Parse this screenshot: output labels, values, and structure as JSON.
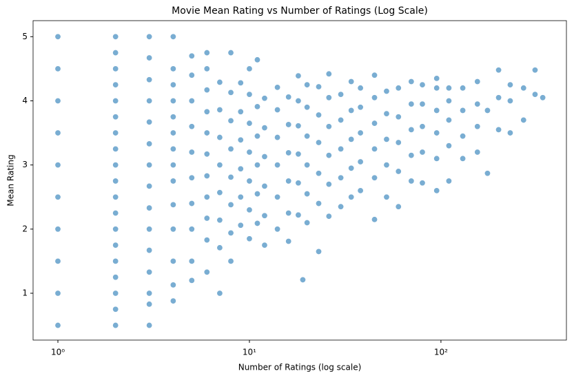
{
  "chart_data": {
    "type": "scatter",
    "title": "Movie Mean Rating vs Number of Ratings (Log Scale)",
    "x_label": "Number of Ratings (log scale)",
    "y_label": "Mean Rating",
    "color": "#1f77b4",
    "x_log": true,
    "grid": false,
    "xlim": [
      0.742,
      452
    ],
    "ylim": [
      0.27,
      5.25
    ],
    "xticks": [
      {
        "value": 1,
        "label": "10⁰"
      },
      {
        "value": 10,
        "label": "10¹"
      },
      {
        "value": 100,
        "label": "10²"
      }
    ],
    "yticks": [
      1,
      2,
      3,
      4,
      5
    ],
    "x": [
      1,
      1,
      1,
      1,
      1,
      1,
      1,
      1,
      1,
      1,
      2,
      2,
      2,
      2,
      2,
      2,
      2,
      2,
      2,
      2,
      2,
      2,
      2,
      2,
      2,
      2,
      2,
      2,
      2,
      3,
      3,
      3,
      3,
      3,
      3,
      3,
      3,
      3,
      3,
      3,
      3,
      3,
      3,
      3,
      4,
      4,
      4,
      4,
      4,
      4,
      4,
      4,
      4,
      4,
      4,
      4,
      4,
      4,
      5,
      5,
      5,
      5,
      5,
      5,
      5,
      5,
      5,
      5,
      6,
      6,
      6,
      6,
      6,
      6,
      6,
      6,
      6,
      6,
      6,
      7,
      7,
      7,
      7,
      7,
      7,
      7,
      7,
      8,
      8,
      8,
      8,
      8,
      8,
      8,
      8,
      9,
      9,
      9,
      9,
      9,
      9,
      10,
      10,
      10,
      10,
      10,
      10,
      10,
      11,
      11,
      11,
      11,
      11,
      11,
      12,
      12,
      12,
      12,
      12,
      12,
      14,
      14,
      14,
      14,
      14,
      14,
      16,
      16,
      16,
      16,
      16,
      16,
      18,
      18,
      18,
      18,
      18,
      18,
      19,
      20,
      20,
      20,
      20,
      20,
      20,
      23,
      23,
      23,
      23,
      23,
      23,
      26,
      26,
      26,
      26,
      26,
      26,
      30,
      30,
      30,
      30,
      30,
      34,
      34,
      34,
      34,
      34,
      38,
      38,
      38,
      38,
      38,
      45,
      45,
      45,
      45,
      45,
      45,
      52,
      52,
      52,
      52,
      52,
      60,
      60,
      60,
      60,
      60,
      70,
      70,
      70,
      70,
      70,
      80,
      80,
      80,
      80,
      80,
      95,
      95,
      95,
      95,
      95,
      95,
      110,
      110,
      110,
      110,
      110,
      130,
      130,
      130,
      130,
      155,
      155,
      155,
      155,
      175,
      175,
      200,
      200,
      200,
      230,
      230,
      230,
      270,
      270,
      310,
      310,
      340
    ],
    "values": [
      0.5,
      1,
      1.5,
      2,
      2.5,
      3,
      3.5,
      4,
      4.5,
      5,
      0.5,
      0.75,
      1,
      1.25,
      1.5,
      1.75,
      2,
      2.25,
      2.5,
      2.75,
      3,
      3.25,
      3.5,
      3.75,
      4,
      4.25,
      4.5,
      4.75,
      5,
      0.5,
      0.83,
      1,
      1.33,
      1.67,
      2,
      2.33,
      2.67,
      3,
      3.33,
      3.67,
      4,
      4.33,
      4.67,
      5,
      0.88,
      1.13,
      1.5,
      2,
      2.38,
      2.75,
      3,
      3.25,
      3.5,
      3.75,
      4,
      4.25,
      4.5,
      5,
      1.2,
      1.5,
      2,
      2.4,
      2.8,
      3.2,
      3.6,
      4,
      4.4,
      4.7,
      1.33,
      1.83,
      2.17,
      2.5,
      2.83,
      3.17,
      3.5,
      3.83,
      4.17,
      4.5,
      4.75,
      1,
      1.71,
      2.14,
      2.57,
      3,
      3.43,
      3.86,
      4.29,
      1.5,
      1.94,
      2.38,
      2.81,
      3.25,
      3.69,
      4.13,
      4.75,
      2.06,
      2.5,
      2.94,
      3.39,
      3.83,
      4.28,
      1.85,
      2.3,
      2.75,
      3.2,
      3.65,
      4.1,
      4.5,
      2.09,
      2.55,
      3.0,
      3.45,
      3.91,
      4.64,
      1.75,
      2.21,
      2.67,
      3.13,
      3.58,
      4.04,
      2.0,
      2.5,
      3.0,
      3.43,
      3.86,
      4.21,
      1.81,
      2.25,
      2.75,
      3.19,
      3.63,
      4.06,
      2.22,
      2.72,
      3.17,
      3.61,
      4.0,
      4.39,
      1.21,
      2.1,
      2.55,
      3.0,
      3.45,
      3.9,
      4.25,
      1.65,
      2.4,
      2.87,
      3.35,
      3.78,
      4.22,
      2.2,
      2.7,
      3.15,
      3.6,
      4.05,
      4.42,
      2.35,
      2.8,
      3.25,
      3.7,
      4.1,
      2.5,
      2.95,
      3.4,
      3.85,
      4.3,
      2.6,
      3.05,
      3.5,
      3.9,
      4.2,
      2.15,
      2.8,
      3.25,
      3.65,
      4.05,
      4.4,
      2.5,
      3.0,
      3.4,
      3.8,
      4.15,
      2.35,
      2.9,
      3.35,
      3.75,
      4.2,
      2.75,
      3.15,
      3.55,
      3.95,
      4.3,
      2.72,
      3.2,
      3.6,
      3.95,
      4.25,
      2.6,
      3.1,
      3.5,
      3.85,
      4.2,
      4.35,
      2.75,
      3.3,
      3.7,
      4.0,
      4.2,
      3.1,
      3.45,
      3.85,
      4.2,
      3.2,
      3.6,
      3.95,
      4.3,
      2.87,
      3.85,
      3.55,
      4.05,
      4.48,
      3.5,
      4.0,
      4.25,
      3.7,
      4.2,
      4.48,
      4.1,
      4.05
    ]
  }
}
